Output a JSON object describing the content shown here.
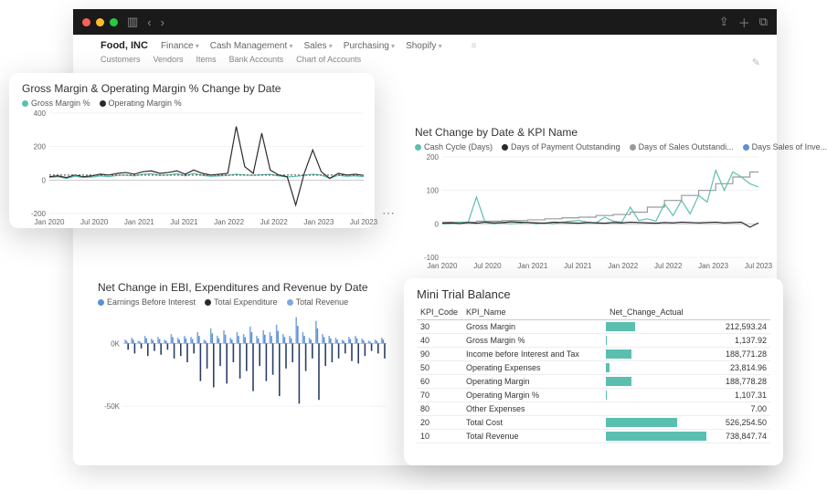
{
  "colors": {
    "teal": "#5bbfb0",
    "black": "#2b2b2b",
    "gray": "#9a9a9a",
    "blue": "#5b8fd6",
    "navy": "#2a3d66",
    "lightblue": "#7fa8e0",
    "grid": "#e5e5e5"
  },
  "titlebar": {
    "dots": [
      "#ff5f56",
      "#ffbd2e",
      "#27c93f"
    ]
  },
  "nav": {
    "brand": "Food, INC",
    "items": [
      "Finance",
      "Cash Management",
      "Sales",
      "Purchasing",
      "Shopify"
    ],
    "sub": [
      "Customers",
      "Vendors",
      "Items",
      "Bank Accounts",
      "Chart of Accounts"
    ]
  },
  "chart1": {
    "title": "Gross Margin & Operating Margin % Change by Date",
    "legend": [
      {
        "label": "Gross Margin %",
        "color": "#5bbfb0"
      },
      {
        "label": "Operating Margin %",
        "color": "#2b2b2b"
      }
    ],
    "ylabels": [
      "400",
      "200",
      "0",
      "-200"
    ],
    "ymin": -200,
    "ymax": 400,
    "xlabels": [
      "Jan 2020",
      "Jul 2020",
      "Jan 2021",
      "Jul 2021",
      "Jan 2022",
      "Jul 2022",
      "Jan 2023",
      "Jul 2023"
    ],
    "series1": [
      20,
      25,
      15,
      30,
      20,
      25,
      35,
      30,
      40,
      45,
      35,
      50,
      55,
      40,
      45,
      55,
      35,
      60,
      40,
      30,
      35,
      40,
      320,
      80,
      40,
      280,
      60,
      30,
      20,
      -150,
      40,
      180,
      50,
      10,
      40,
      30,
      35,
      28
    ],
    "series2": [
      15,
      20,
      10,
      22,
      15,
      18,
      25,
      20,
      28,
      30,
      25,
      35,
      38,
      28,
      30,
      38,
      25,
      40,
      28,
      22,
      25,
      28,
      35,
      30,
      28,
      32,
      34,
      25,
      18,
      22,
      28,
      35,
      30,
      10,
      28,
      22,
      25,
      20
    ]
  },
  "chart2": {
    "title": "Net Change by Date & KPI Name",
    "legend": [
      {
        "label": "Cash Cycle (Days)",
        "color": "#5bbfb0"
      },
      {
        "label": "Days of Payment Outstanding",
        "color": "#2b2b2b"
      },
      {
        "label": "Days of Sales Outstandi...",
        "color": "#9a9a9a"
      },
      {
        "label": "Days Sales of Inve...",
        "color": "#5b8fd6"
      }
    ],
    "ylabels": [
      "200",
      "100",
      "0",
      "-100"
    ],
    "ymin": -100,
    "ymax": 200,
    "xlabels": [
      "Jan 2020",
      "Jul 2020",
      "Jan 2021",
      "Jul 2021",
      "Jan 2022",
      "Jul 2022",
      "Jan 2023",
      "Jul 2023"
    ],
    "teal": [
      0,
      0,
      5,
      3,
      80,
      5,
      0,
      3,
      0,
      2,
      5,
      0,
      3,
      0,
      5,
      8,
      10,
      5,
      3,
      20,
      8,
      5,
      50,
      10,
      15,
      8,
      60,
      25,
      70,
      30,
      85,
      65,
      160,
      100,
      155,
      140,
      120,
      110
    ],
    "black": [
      2,
      3,
      1,
      4,
      2,
      5,
      3,
      4,
      6,
      5,
      4,
      3,
      2,
      5,
      4,
      3,
      2,
      4,
      3,
      2,
      4,
      3,
      5,
      4,
      3,
      2,
      4,
      3,
      5,
      4,
      3,
      4,
      5,
      3,
      4,
      5,
      -10,
      3
    ],
    "gray_step": [
      5,
      5,
      5,
      5,
      8,
      8,
      8,
      10,
      10,
      10,
      12,
      12,
      15,
      15,
      18,
      18,
      20,
      20,
      25,
      25,
      28,
      28,
      35,
      35,
      50,
      50,
      70,
      70,
      85,
      85,
      100,
      100,
      120,
      120,
      140,
      140,
      155,
      155
    ]
  },
  "chart3": {
    "title": "Net Change in EBI, Expenditures and Revenue by Date",
    "legend": [
      {
        "label": "Earnings Before Interest",
        "color": "#5b8fd6"
      },
      {
        "label": "Total Expenditure",
        "color": "#2b2b2b"
      },
      {
        "label": "Total Revenue",
        "color": "#7fa8e0"
      }
    ],
    "ylabels": [
      "0K",
      "-50K"
    ],
    "ymin": -55000,
    "ymax": 25000,
    "ebi": [
      2000,
      3000,
      1500,
      4000,
      2500,
      3500,
      2000,
      5000,
      3000,
      4000,
      3500,
      6000,
      2000,
      8000,
      4000,
      7000,
      3000,
      6000,
      5000,
      9000,
      4000,
      7000,
      6000,
      10000,
      5000,
      4000,
      14000,
      6000,
      3000,
      12000,
      5000,
      4000,
      3000,
      2000,
      3500,
      4000,
      2500,
      1500,
      2000,
      3000
    ],
    "exp": [
      -5000,
      -8000,
      -4000,
      -10000,
      -6000,
      -9000,
      -5000,
      -12000,
      -10000,
      -15000,
      -8000,
      -30000,
      -20000,
      -35000,
      -18000,
      -32000,
      -15000,
      -28000,
      -22000,
      -38000,
      -18000,
      -30000,
      -25000,
      -42000,
      -20000,
      -15000,
      -48000,
      -22000,
      -12000,
      -45000,
      -18000,
      -15000,
      -12000,
      -8000,
      -14000,
      -16000,
      -10000,
      -6000,
      -8000,
      -12000
    ],
    "rev": [
      3000,
      4500,
      2200,
      6000,
      3800,
      5200,
      3000,
      7500,
      4500,
      6000,
      5200,
      9000,
      3000,
      12000,
      6000,
      10500,
      4500,
      9000,
      7500,
      13500,
      6000,
      10500,
      9000,
      15000,
      7500,
      6000,
      21000,
      9000,
      4500,
      18000,
      7500,
      6000,
      4500,
      3000,
      5200,
      6000,
      3800,
      2200,
      3000,
      4500
    ]
  },
  "trial": {
    "title": "Mini Trial Balance",
    "headers": [
      "KPI_Code",
      "KPI_Name",
      "Net_Change_Actual"
    ],
    "max": 738847.74,
    "rows": [
      {
        "code": "30",
        "name": "Gross Margin",
        "val": 212593.24,
        "disp": "212,593.24"
      },
      {
        "code": "40",
        "name": "Gross Margin %",
        "val": 1137.92,
        "disp": "1,137.92"
      },
      {
        "code": "90",
        "name": "Income before Interest and Tax",
        "val": 188771.28,
        "disp": "188,771.28"
      },
      {
        "code": "50",
        "name": "Operating Expenses",
        "val": 23814.96,
        "disp": "23,814.96"
      },
      {
        "code": "60",
        "name": "Operating Margin",
        "val": 188778.28,
        "disp": "188,778.28"
      },
      {
        "code": "70",
        "name": "Operating Margin %",
        "val": 1107.31,
        "disp": "1,107.31"
      },
      {
        "code": "80",
        "name": "Other Expenses",
        "val": 7.0,
        "disp": "7.00"
      },
      {
        "code": "20",
        "name": "Total Cost",
        "val": 526254.5,
        "disp": "526,254.50"
      },
      {
        "code": "10",
        "name": "Total Revenue",
        "val": 738847.74,
        "disp": "738,847.74"
      }
    ]
  }
}
